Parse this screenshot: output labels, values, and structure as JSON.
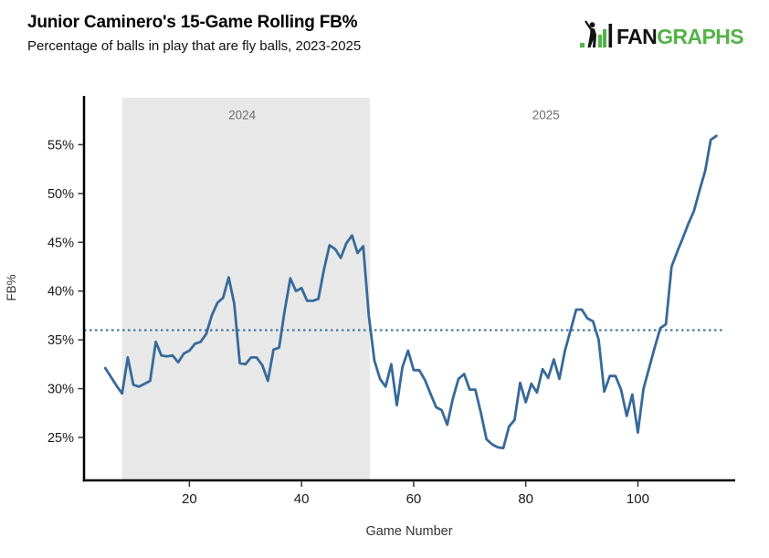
{
  "header": {
    "title": "Junior Caminero's 15-Game Rolling FB%",
    "subtitle": "Percentage of balls in play that are fly balls, 2023-2025"
  },
  "logo": {
    "fan": "FAN",
    "graphs": "GRAPHS",
    "green": "#52b447",
    "black": "#121212"
  },
  "chart_data": {
    "type": "line",
    "title": "Junior Caminero's 15-Game Rolling FB%",
    "subtitle": "Percentage of balls in play that are fly balls, 2023-2025",
    "xlabel": "Game Number",
    "ylabel": "FB%",
    "series_name": "15-game rolling FB%",
    "line_color": "#376999",
    "axis_color": "#000000",
    "tick_label_color": "#1a1a1a",
    "axis_label_color": "#333333",
    "annotation_color": "#6e6e6e",
    "xlim": [
      1.2,
      117.2
    ],
    "ylim": [
      20.6,
      60.0
    ],
    "xticks": [
      20,
      40,
      60,
      80,
      100
    ],
    "yticks": [
      25,
      30,
      35,
      40,
      45,
      50,
      55
    ],
    "ytick_suffix": "%",
    "grid": false,
    "legend": "none",
    "reference_line": {
      "value": 36,
      "style": "dotted",
      "color": "#376999",
      "x_from": 1.2,
      "x_to": 115
    },
    "season_band": {
      "from": 8,
      "to": 52.2,
      "color": "#e8e8e8"
    },
    "annotations": [
      {
        "text": "2024",
        "x": 29.4,
        "y": 57.6
      },
      {
        "text": "2025",
        "x": 83.6,
        "y": 57.6
      }
    ],
    "x": [
      5,
      6,
      7,
      8,
      9,
      10,
      11,
      12,
      13,
      14,
      15,
      16,
      17,
      18,
      19,
      20,
      21,
      22,
      23,
      24,
      25,
      26,
      27,
      28,
      29,
      30,
      31,
      32,
      33,
      34,
      35,
      36,
      37,
      38,
      39,
      40,
      41,
      42,
      43,
      44,
      45,
      46,
      47,
      48,
      49,
      50,
      51,
      52,
      53,
      54,
      55,
      56,
      57,
      58,
      59,
      60,
      61,
      62,
      63,
      64,
      65,
      66,
      67,
      68,
      69,
      70,
      71,
      72,
      73,
      74,
      75,
      76,
      77,
      78,
      79,
      80,
      81,
      82,
      83,
      84,
      85,
      86,
      87,
      88,
      89,
      90,
      91,
      92,
      93,
      94,
      95,
      96,
      97,
      98,
      99,
      100,
      101,
      102,
      103,
      104,
      105,
      106,
      107,
      108,
      109,
      110,
      111,
      112,
      113,
      114
    ],
    "values": [
      32.1,
      31.2,
      30.3,
      29.5,
      33.2,
      30.4,
      30.2,
      30.5,
      30.8,
      34.8,
      33.4,
      33.3,
      33.4,
      32.7,
      33.6,
      33.9,
      34.6,
      34.8,
      35.6,
      37.5,
      38.8,
      39.3,
      41.4,
      38.7,
      32.6,
      32.5,
      33.2,
      33.2,
      32.4,
      30.8,
      34.0,
      34.2,
      38.0,
      41.3,
      40.0,
      40.3,
      39.0,
      39.0,
      39.2,
      42.2,
      44.7,
      44.3,
      43.4,
      44.9,
      45.7,
      43.9,
      44.6,
      37.5,
      32.9,
      31.0,
      30.2,
      32.5,
      28.3,
      32.2,
      33.9,
      31.9,
      31.9,
      30.9,
      29.5,
      28.1,
      27.8,
      26.3,
      29.0,
      31.0,
      31.5,
      29.9,
      29.9,
      27.5,
      24.8,
      24.3,
      24.0,
      23.9,
      26.1,
      26.8,
      30.6,
      28.6,
      30.5,
      29.6,
      32.0,
      31.1,
      33.0,
      31.0,
      33.9,
      36.0,
      38.1,
      38.1,
      37.2,
      36.9,
      35.0,
      29.7,
      31.3,
      31.3,
      29.9,
      27.2,
      29.4,
      25.5,
      30.0,
      32.1,
      34.2,
      36.2,
      36.6,
      42.5,
      44.0,
      45.4,
      46.9,
      48.2,
      50.3,
      52.3,
      55.5,
      55.9
    ]
  }
}
